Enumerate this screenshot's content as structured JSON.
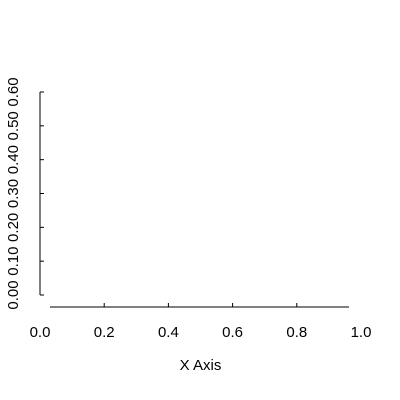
{
  "chart_data": {
    "type": "line",
    "title": "",
    "xlabel": "X Axis",
    "ylabel": "",
    "xlim": [
      0.0,
      1.0
    ],
    "ylim": [
      0.0,
      0.6
    ],
    "x_ticks": [
      0.0,
      0.2,
      0.4,
      0.6,
      0.8,
      1.0
    ],
    "x_tick_labels": [
      "0.0",
      "0.2",
      "0.4",
      "0.6",
      "0.8",
      "1.0"
    ],
    "y_ticks": [
      0.0,
      0.1,
      0.2,
      0.3,
      0.4,
      0.5,
      0.6
    ],
    "y_tick_labels": [
      "0.00",
      "0.10",
      "0.20",
      "0.30",
      "0.40",
      "0.50",
      "0.60"
    ],
    "grid": false,
    "series": []
  }
}
